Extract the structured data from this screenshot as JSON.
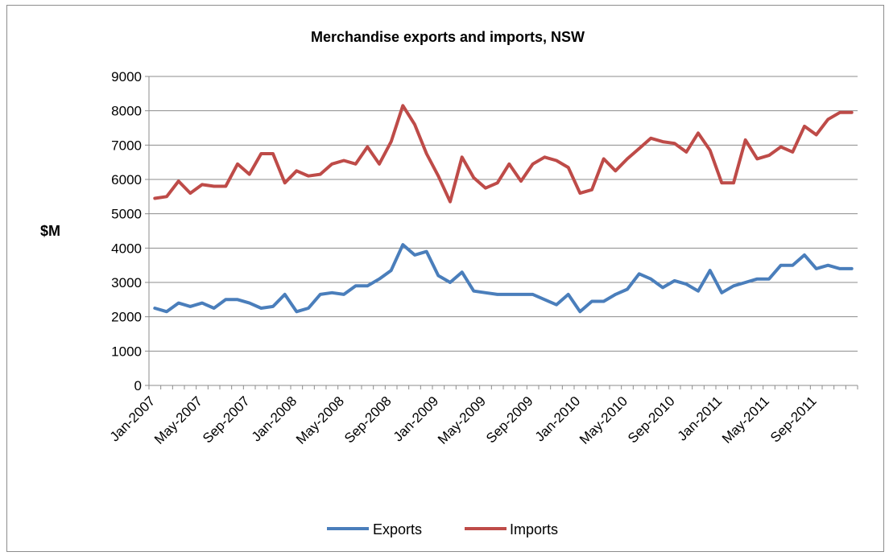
{
  "chart_data": {
    "type": "line",
    "title": "Merchandise exports and imports, NSW",
    "xlabel": "",
    "ylabel": "$M",
    "ylim": [
      0,
      9000
    ],
    "yticks": [
      0,
      1000,
      2000,
      3000,
      4000,
      5000,
      6000,
      7000,
      8000,
      9000
    ],
    "grid": true,
    "legend_position": "bottom",
    "x_start": "Jan-2007",
    "x_tick_labels": [
      "Jan-2007",
      "May-2007",
      "Sep-2007",
      "Jan-2008",
      "May-2008",
      "Sep-2008",
      "Jan-2009",
      "May-2009",
      "Sep-2009",
      "Jan-2010",
      "May-2010",
      "Sep-2010",
      "Jan-2011",
      "May-2011",
      "Sep-2011"
    ],
    "x": [
      "Jan-2007",
      "Feb-2007",
      "Mar-2007",
      "Apr-2007",
      "May-2007",
      "Jun-2007",
      "Jul-2007",
      "Aug-2007",
      "Sep-2007",
      "Oct-2007",
      "Nov-2007",
      "Dec-2007",
      "Jan-2008",
      "Feb-2008",
      "Mar-2008",
      "Apr-2008",
      "May-2008",
      "Jun-2008",
      "Jul-2008",
      "Aug-2008",
      "Sep-2008",
      "Oct-2008",
      "Nov-2008",
      "Dec-2008",
      "Jan-2009",
      "Feb-2009",
      "Mar-2009",
      "Apr-2009",
      "May-2009",
      "Jun-2009",
      "Jul-2009",
      "Aug-2009",
      "Sep-2009",
      "Oct-2009",
      "Nov-2009",
      "Dec-2009",
      "Jan-2010",
      "Feb-2010",
      "Mar-2010",
      "Apr-2010",
      "May-2010",
      "Jun-2010",
      "Jul-2010",
      "Aug-2010",
      "Sep-2010",
      "Oct-2010",
      "Nov-2010",
      "Dec-2010",
      "Jan-2011",
      "Feb-2011",
      "Mar-2011",
      "Apr-2011",
      "May-2011",
      "Jun-2011",
      "Jul-2011",
      "Aug-2011",
      "Sep-2011",
      "Oct-2011",
      "Nov-2011",
      "Dec-2011"
    ],
    "series": [
      {
        "name": "Exports",
        "color": "#4a7ebb",
        "values": [
          2250,
          2150,
          2400,
          2300,
          2400,
          2250,
          2500,
          2500,
          2400,
          2250,
          2300,
          2650,
          2150,
          2250,
          2650,
          2700,
          2650,
          2900,
          2900,
          3100,
          3350,
          4100,
          3800,
          3900,
          3200,
          3000,
          3300,
          2750,
          2700,
          2650,
          2650,
          2650,
          2650,
          2500,
          2350,
          2650,
          2150,
          2450,
          2450,
          2650,
          2800,
          3250,
          3100,
          2850,
          3050,
          2950,
          2750,
          3350,
          2700,
          2900,
          3000,
          3100,
          3100,
          3500,
          3500,
          3800,
          3400,
          3500,
          3400,
          3400
        ]
      },
      {
        "name": "Imports",
        "color": "#be4b48",
        "values": [
          5450,
          5500,
          5950,
          5600,
          5850,
          5800,
          5800,
          6450,
          6150,
          6750,
          6750,
          5900,
          6250,
          6100,
          6150,
          6450,
          6550,
          6450,
          6950,
          6450,
          7100,
          8150,
          7600,
          6750,
          6100,
          5350,
          6650,
          6050,
          5750,
          5900,
          6450,
          5950,
          6450,
          6650,
          6550,
          6350,
          5600,
          5700,
          6600,
          6250,
          6600,
          6900,
          7200,
          7100,
          7050,
          6800,
          7350,
          6850,
          5900,
          5900,
          7150,
          6600,
          6700,
          6950,
          6800,
          7550,
          7300,
          7750,
          7950,
          7950
        ]
      }
    ]
  }
}
